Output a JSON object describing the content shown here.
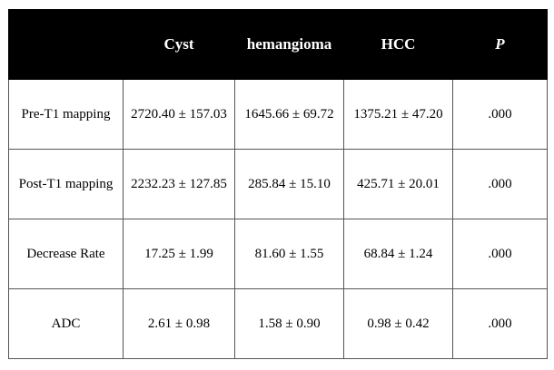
{
  "table": {
    "headers": [
      "",
      "Cyst",
      "hemangioma",
      "HCC",
      "P"
    ],
    "rows": [
      {
        "label": "Pre-T1 mapping",
        "cells": [
          "2720.40 ± 157.03",
          "1645.66 ± 69.72",
          "1375.21 ± 47.20",
          ".000"
        ]
      },
      {
        "label": "Post-T1 mapping",
        "cells": [
          "2232.23 ± 127.85",
          "285.84 ± 15.10",
          "425.71 ± 20.01",
          ".000"
        ]
      },
      {
        "label": "Decrease Rate",
        "cells": [
          "17.25 ± 1.99",
          "81.60 ± 1.55",
          "68.84 ± 1.24",
          ".000"
        ]
      },
      {
        "label": "ADC",
        "cells": [
          "2.61 ± 0.98",
          "1.58 ± 0.90",
          "0.98 ± 0.42",
          ".000"
        ]
      }
    ]
  },
  "colors": {
    "header_bg": "#000000",
    "header_text": "#ffffff"
  }
}
